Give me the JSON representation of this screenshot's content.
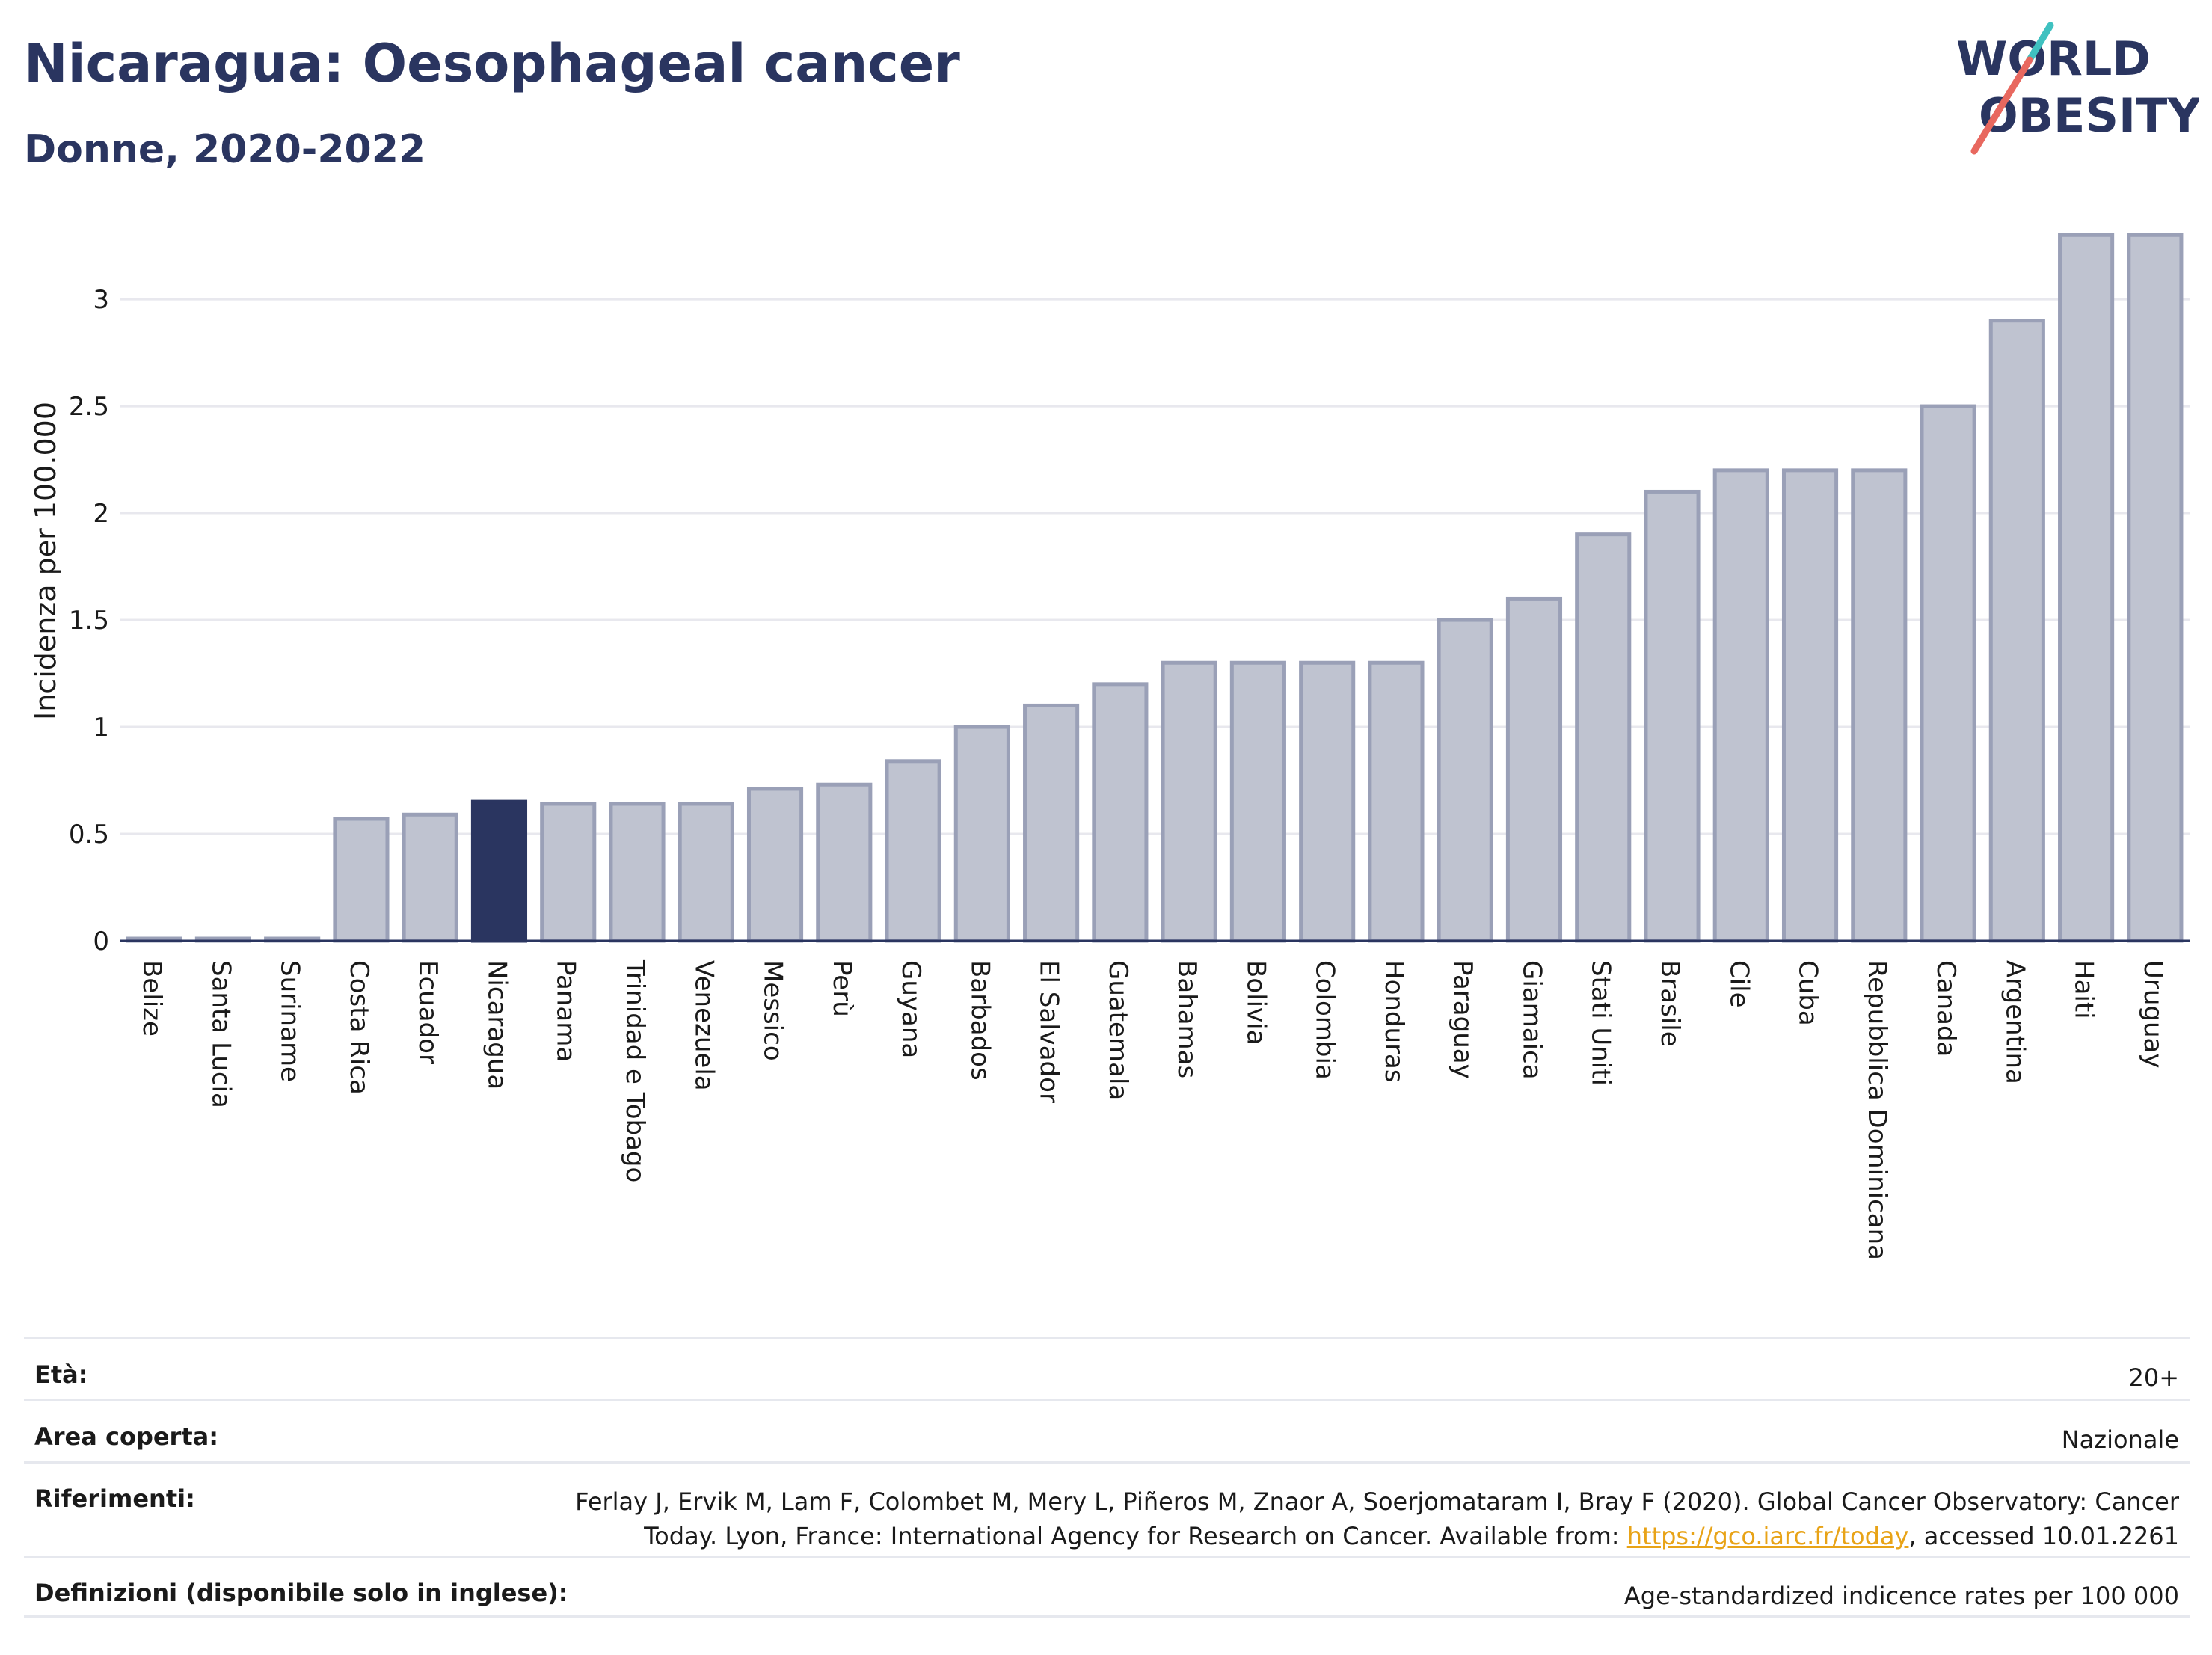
{
  "header": {
    "title": "Nicaragua: Oesophageal cancer",
    "subtitle": "Donne, 2020-2022",
    "logo_line1": "WORLD",
    "logo_line2": "OBESITY"
  },
  "chart_data": {
    "type": "bar",
    "ylabel": "Incidenza per 100.000",
    "ylim": [
      0,
      3.35
    ],
    "yticks": [
      "0",
      "0.5",
      "1",
      "1.5",
      "2",
      "2.5",
      "3"
    ],
    "ytick_values": [
      0,
      0.5,
      1,
      1.5,
      2,
      2.5,
      3
    ],
    "categories": [
      "Belize",
      "Santa Lucia",
      "Suriname",
      "Costa Rica",
      "Ecuador",
      "Nicaragua",
      "Panama",
      "Trinidad e Tobago",
      "Venezuela",
      "Messico",
      "Perù",
      "Guyana",
      "Barbados",
      "El Salvador",
      "Guatemala",
      "Bahamas",
      "Bolivia",
      "Colombia",
      "Honduras",
      "Paraguay",
      "Giamaica",
      "Stati Uniti",
      "Brasile",
      "Cile",
      "Cuba",
      "Repubblica Dominicana",
      "Canada",
      "Argentina",
      "Haiti",
      "Uruguay"
    ],
    "values": [
      0.01,
      0.01,
      0.01,
      0.57,
      0.59,
      0.65,
      0.64,
      0.64,
      0.64,
      0.71,
      0.73,
      0.84,
      1.0,
      1.1,
      1.2,
      1.3,
      1.3,
      1.3,
      1.3,
      1.5,
      1.6,
      1.9,
      2.1,
      2.2,
      2.2,
      2.2,
      2.5,
      2.9,
      3.3,
      3.3
    ],
    "highlight": "Nicaragua",
    "colors": {
      "highlight": "#2a3560",
      "bar_fill": "#bfc3d0",
      "bar_stroke": "#9aa0b7",
      "grid": "#e8e8ee",
      "axis": "#2a3560"
    }
  },
  "meta": [
    {
      "key": "Età:",
      "value": "20+"
    },
    {
      "key": "Area coperta:",
      "value": "Nazionale"
    },
    {
      "key": "Riferimenti:",
      "value_line1": "Ferlay J, Ervik M, Lam F, Colombet M, Mery L, Piñeros M, Znaor A, Soerjomataram I, Bray F (2020). Global Cancer Observatory: Cancer",
      "value_line2_pre": "Today. Lyon, France: International Agency for Research on Cancer. Available from: ",
      "link": "https://gco.iarc.fr/today",
      "value_line2_post": ", accessed 10.01.2261"
    },
    {
      "key": "Definizioni (disponibile solo in inglese):",
      "value": "Age-standardized indicence rates per 100 000"
    }
  ]
}
